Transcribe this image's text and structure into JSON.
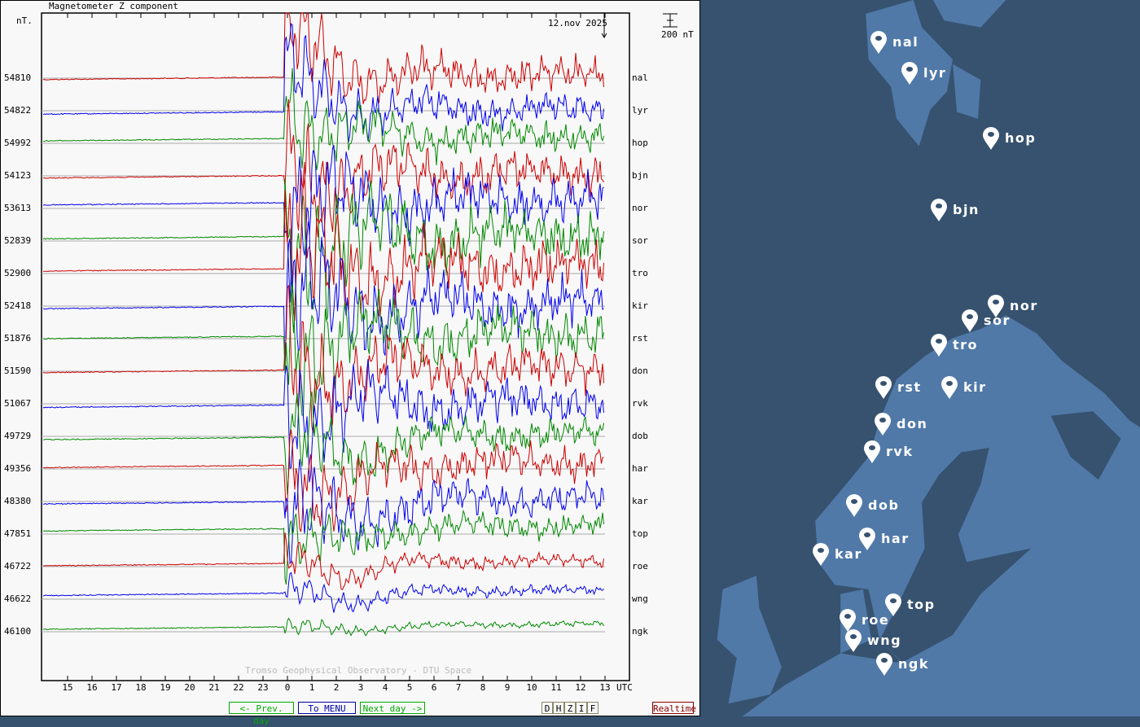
{
  "plot": {
    "title": "Magnetometer Z component",
    "unit_label": "nT.",
    "date": "12.nov 2025",
    "scale_label": "200 nT",
    "credit": "Tromso Geophysical Observatory - DTU Space",
    "utc_label": "UTC",
    "hour_ticks": [
      "15",
      "16",
      "17",
      "18",
      "19",
      "20",
      "21",
      "22",
      "23",
      "0",
      "1",
      "2",
      "3",
      "4",
      "5",
      "6",
      "7",
      "8",
      "9",
      "10",
      "11",
      "12",
      "13"
    ],
    "trace_colors": [
      "#cc0000",
      "#0000ee",
      "#008800"
    ],
    "stations": [
      {
        "code": "nal",
        "baseline": "54810"
      },
      {
        "code": "lyr",
        "baseline": "54822"
      },
      {
        "code": "hop",
        "baseline": "54992"
      },
      {
        "code": "bjn",
        "baseline": "54123"
      },
      {
        "code": "nor",
        "baseline": "53613"
      },
      {
        "code": "sor",
        "baseline": "52839"
      },
      {
        "code": "tro",
        "baseline": "52900"
      },
      {
        "code": "kir",
        "baseline": "52418"
      },
      {
        "code": "rst",
        "baseline": "51876"
      },
      {
        "code": "don",
        "baseline": "51590"
      },
      {
        "code": "rvk",
        "baseline": "51067"
      },
      {
        "code": "dob",
        "baseline": "49729"
      },
      {
        "code": "har",
        "baseline": "49356"
      },
      {
        "code": "kar",
        "baseline": "48380"
      },
      {
        "code": "top",
        "baseline": "47851"
      },
      {
        "code": "roe",
        "baseline": "46722"
      },
      {
        "code": "wng",
        "baseline": "46622"
      },
      {
        "code": "ngk",
        "baseline": "46100"
      }
    ]
  },
  "nav": {
    "prev_day": "<- Prev. day",
    "menu": "To MENU",
    "next_day": "Next day ->",
    "components": [
      "D",
      "H",
      "Z",
      "I",
      "F"
    ],
    "realtime": "Realtime"
  },
  "map": {
    "land_color": "#5079a8",
    "sea_color": "#36526f",
    "stations": [
      "nal",
      "lyr",
      "hop",
      "bjn",
      "nor",
      "sor",
      "tro",
      "rst",
      "kir",
      "don",
      "rvk",
      "dob",
      "har",
      "kar",
      "top",
      "roe",
      "wng",
      "ngk"
    ]
  }
}
